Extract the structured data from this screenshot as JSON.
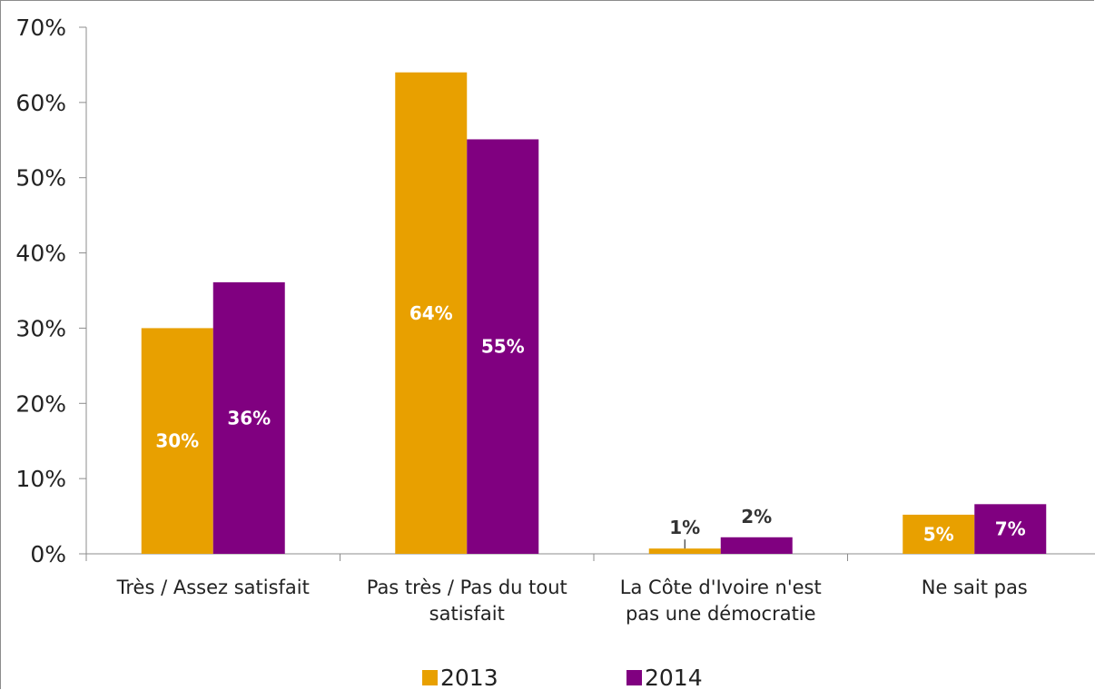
{
  "chart_data": {
    "type": "bar",
    "categories": [
      [
        "Très / Assez satisfait"
      ],
      [
        "Pas très / Pas du tout",
        "satisfait"
      ],
      [
        "La Côte d'Ivoire n'est",
        "pas une démocratie"
      ],
      [
        "Ne sait pas"
      ]
    ],
    "series": [
      {
        "name": "2013",
        "color": "#E8A000",
        "values": [
          30,
          64,
          0.7,
          5.2
        ],
        "labels": [
          "30%",
          "64%",
          "1%",
          "5%"
        ]
      },
      {
        "name": "2014",
        "color": "#800080",
        "values": [
          36.1,
          55.1,
          2.2,
          6.6
        ],
        "labels": [
          "36%",
          "55%",
          "2%",
          "7%"
        ]
      }
    ],
    "yticks": [
      "0%",
      "10%",
      "20%",
      "30%",
      "40%",
      "50%",
      "60%",
      "70%"
    ],
    "ylim": [
      0,
      70
    ],
    "grid": false,
    "legend": "bottom",
    "label_colors": {
      "inside": "#ffffff",
      "outside": "#333333"
    }
  }
}
